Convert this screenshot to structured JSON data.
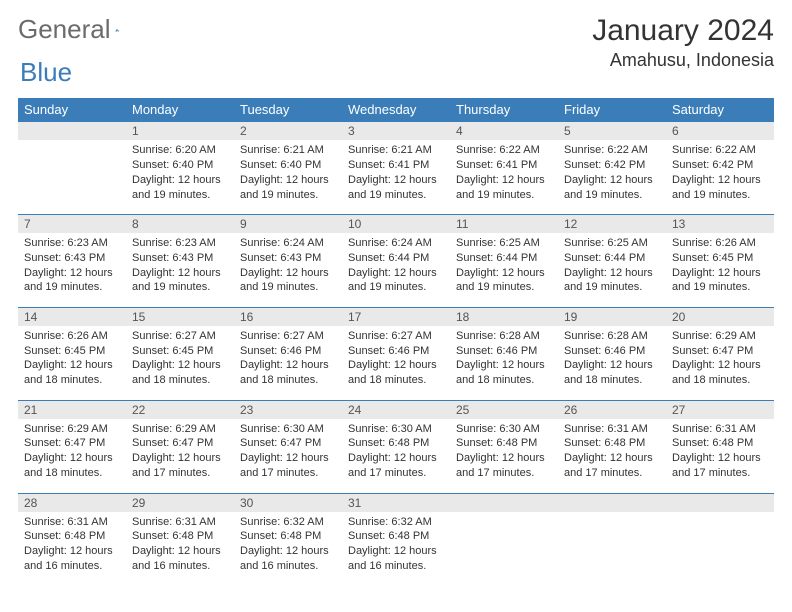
{
  "logo": {
    "word1": "General",
    "word2": "Blue"
  },
  "title": "January 2024",
  "location": "Amahusu, Indonesia",
  "colors": {
    "header_bg": "#3a7db8",
    "header_fg": "#ffffff",
    "daynum_bg": "#e9e9e9",
    "border": "#3a7db8",
    "text": "#333333",
    "logo_gray": "#6b6b6b",
    "logo_blue": "#3a7db8"
  },
  "day_headers": [
    "Sunday",
    "Monday",
    "Tuesday",
    "Wednesday",
    "Thursday",
    "Friday",
    "Saturday"
  ],
  "weeks": [
    {
      "nums": [
        "",
        "1",
        "2",
        "3",
        "4",
        "5",
        "6"
      ],
      "cells": [
        null,
        {
          "sunrise": "6:20 AM",
          "sunset": "6:40 PM",
          "daylight": "12 hours and 19 minutes."
        },
        {
          "sunrise": "6:21 AM",
          "sunset": "6:40 PM",
          "daylight": "12 hours and 19 minutes."
        },
        {
          "sunrise": "6:21 AM",
          "sunset": "6:41 PM",
          "daylight": "12 hours and 19 minutes."
        },
        {
          "sunrise": "6:22 AM",
          "sunset": "6:41 PM",
          "daylight": "12 hours and 19 minutes."
        },
        {
          "sunrise": "6:22 AM",
          "sunset": "6:42 PM",
          "daylight": "12 hours and 19 minutes."
        },
        {
          "sunrise": "6:22 AM",
          "sunset": "6:42 PM",
          "daylight": "12 hours and 19 minutes."
        }
      ]
    },
    {
      "nums": [
        "7",
        "8",
        "9",
        "10",
        "11",
        "12",
        "13"
      ],
      "cells": [
        {
          "sunrise": "6:23 AM",
          "sunset": "6:43 PM",
          "daylight": "12 hours and 19 minutes."
        },
        {
          "sunrise": "6:23 AM",
          "sunset": "6:43 PM",
          "daylight": "12 hours and 19 minutes."
        },
        {
          "sunrise": "6:24 AM",
          "sunset": "6:43 PM",
          "daylight": "12 hours and 19 minutes."
        },
        {
          "sunrise": "6:24 AM",
          "sunset": "6:44 PM",
          "daylight": "12 hours and 19 minutes."
        },
        {
          "sunrise": "6:25 AM",
          "sunset": "6:44 PM",
          "daylight": "12 hours and 19 minutes."
        },
        {
          "sunrise": "6:25 AM",
          "sunset": "6:44 PM",
          "daylight": "12 hours and 19 minutes."
        },
        {
          "sunrise": "6:26 AM",
          "sunset": "6:45 PM",
          "daylight": "12 hours and 19 minutes."
        }
      ]
    },
    {
      "nums": [
        "14",
        "15",
        "16",
        "17",
        "18",
        "19",
        "20"
      ],
      "cells": [
        {
          "sunrise": "6:26 AM",
          "sunset": "6:45 PM",
          "daylight": "12 hours and 18 minutes."
        },
        {
          "sunrise": "6:27 AM",
          "sunset": "6:45 PM",
          "daylight": "12 hours and 18 minutes."
        },
        {
          "sunrise": "6:27 AM",
          "sunset": "6:46 PM",
          "daylight": "12 hours and 18 minutes."
        },
        {
          "sunrise": "6:27 AM",
          "sunset": "6:46 PM",
          "daylight": "12 hours and 18 minutes."
        },
        {
          "sunrise": "6:28 AM",
          "sunset": "6:46 PM",
          "daylight": "12 hours and 18 minutes."
        },
        {
          "sunrise": "6:28 AM",
          "sunset": "6:46 PM",
          "daylight": "12 hours and 18 minutes."
        },
        {
          "sunrise": "6:29 AM",
          "sunset": "6:47 PM",
          "daylight": "12 hours and 18 minutes."
        }
      ]
    },
    {
      "nums": [
        "21",
        "22",
        "23",
        "24",
        "25",
        "26",
        "27"
      ],
      "cells": [
        {
          "sunrise": "6:29 AM",
          "sunset": "6:47 PM",
          "daylight": "12 hours and 18 minutes."
        },
        {
          "sunrise": "6:29 AM",
          "sunset": "6:47 PM",
          "daylight": "12 hours and 17 minutes."
        },
        {
          "sunrise": "6:30 AM",
          "sunset": "6:47 PM",
          "daylight": "12 hours and 17 minutes."
        },
        {
          "sunrise": "6:30 AM",
          "sunset": "6:48 PM",
          "daylight": "12 hours and 17 minutes."
        },
        {
          "sunrise": "6:30 AM",
          "sunset": "6:48 PM",
          "daylight": "12 hours and 17 minutes."
        },
        {
          "sunrise": "6:31 AM",
          "sunset": "6:48 PM",
          "daylight": "12 hours and 17 minutes."
        },
        {
          "sunrise": "6:31 AM",
          "sunset": "6:48 PM",
          "daylight": "12 hours and 17 minutes."
        }
      ]
    },
    {
      "nums": [
        "28",
        "29",
        "30",
        "31",
        "",
        "",
        ""
      ],
      "cells": [
        {
          "sunrise": "6:31 AM",
          "sunset": "6:48 PM",
          "daylight": "12 hours and 16 minutes."
        },
        {
          "sunrise": "6:31 AM",
          "sunset": "6:48 PM",
          "daylight": "12 hours and 16 minutes."
        },
        {
          "sunrise": "6:32 AM",
          "sunset": "6:48 PM",
          "daylight": "12 hours and 16 minutes."
        },
        {
          "sunrise": "6:32 AM",
          "sunset": "6:48 PM",
          "daylight": "12 hours and 16 minutes."
        },
        null,
        null,
        null
      ]
    }
  ],
  "labels": {
    "sunrise": "Sunrise: ",
    "sunset": "Sunset: ",
    "daylight": "Daylight: "
  }
}
